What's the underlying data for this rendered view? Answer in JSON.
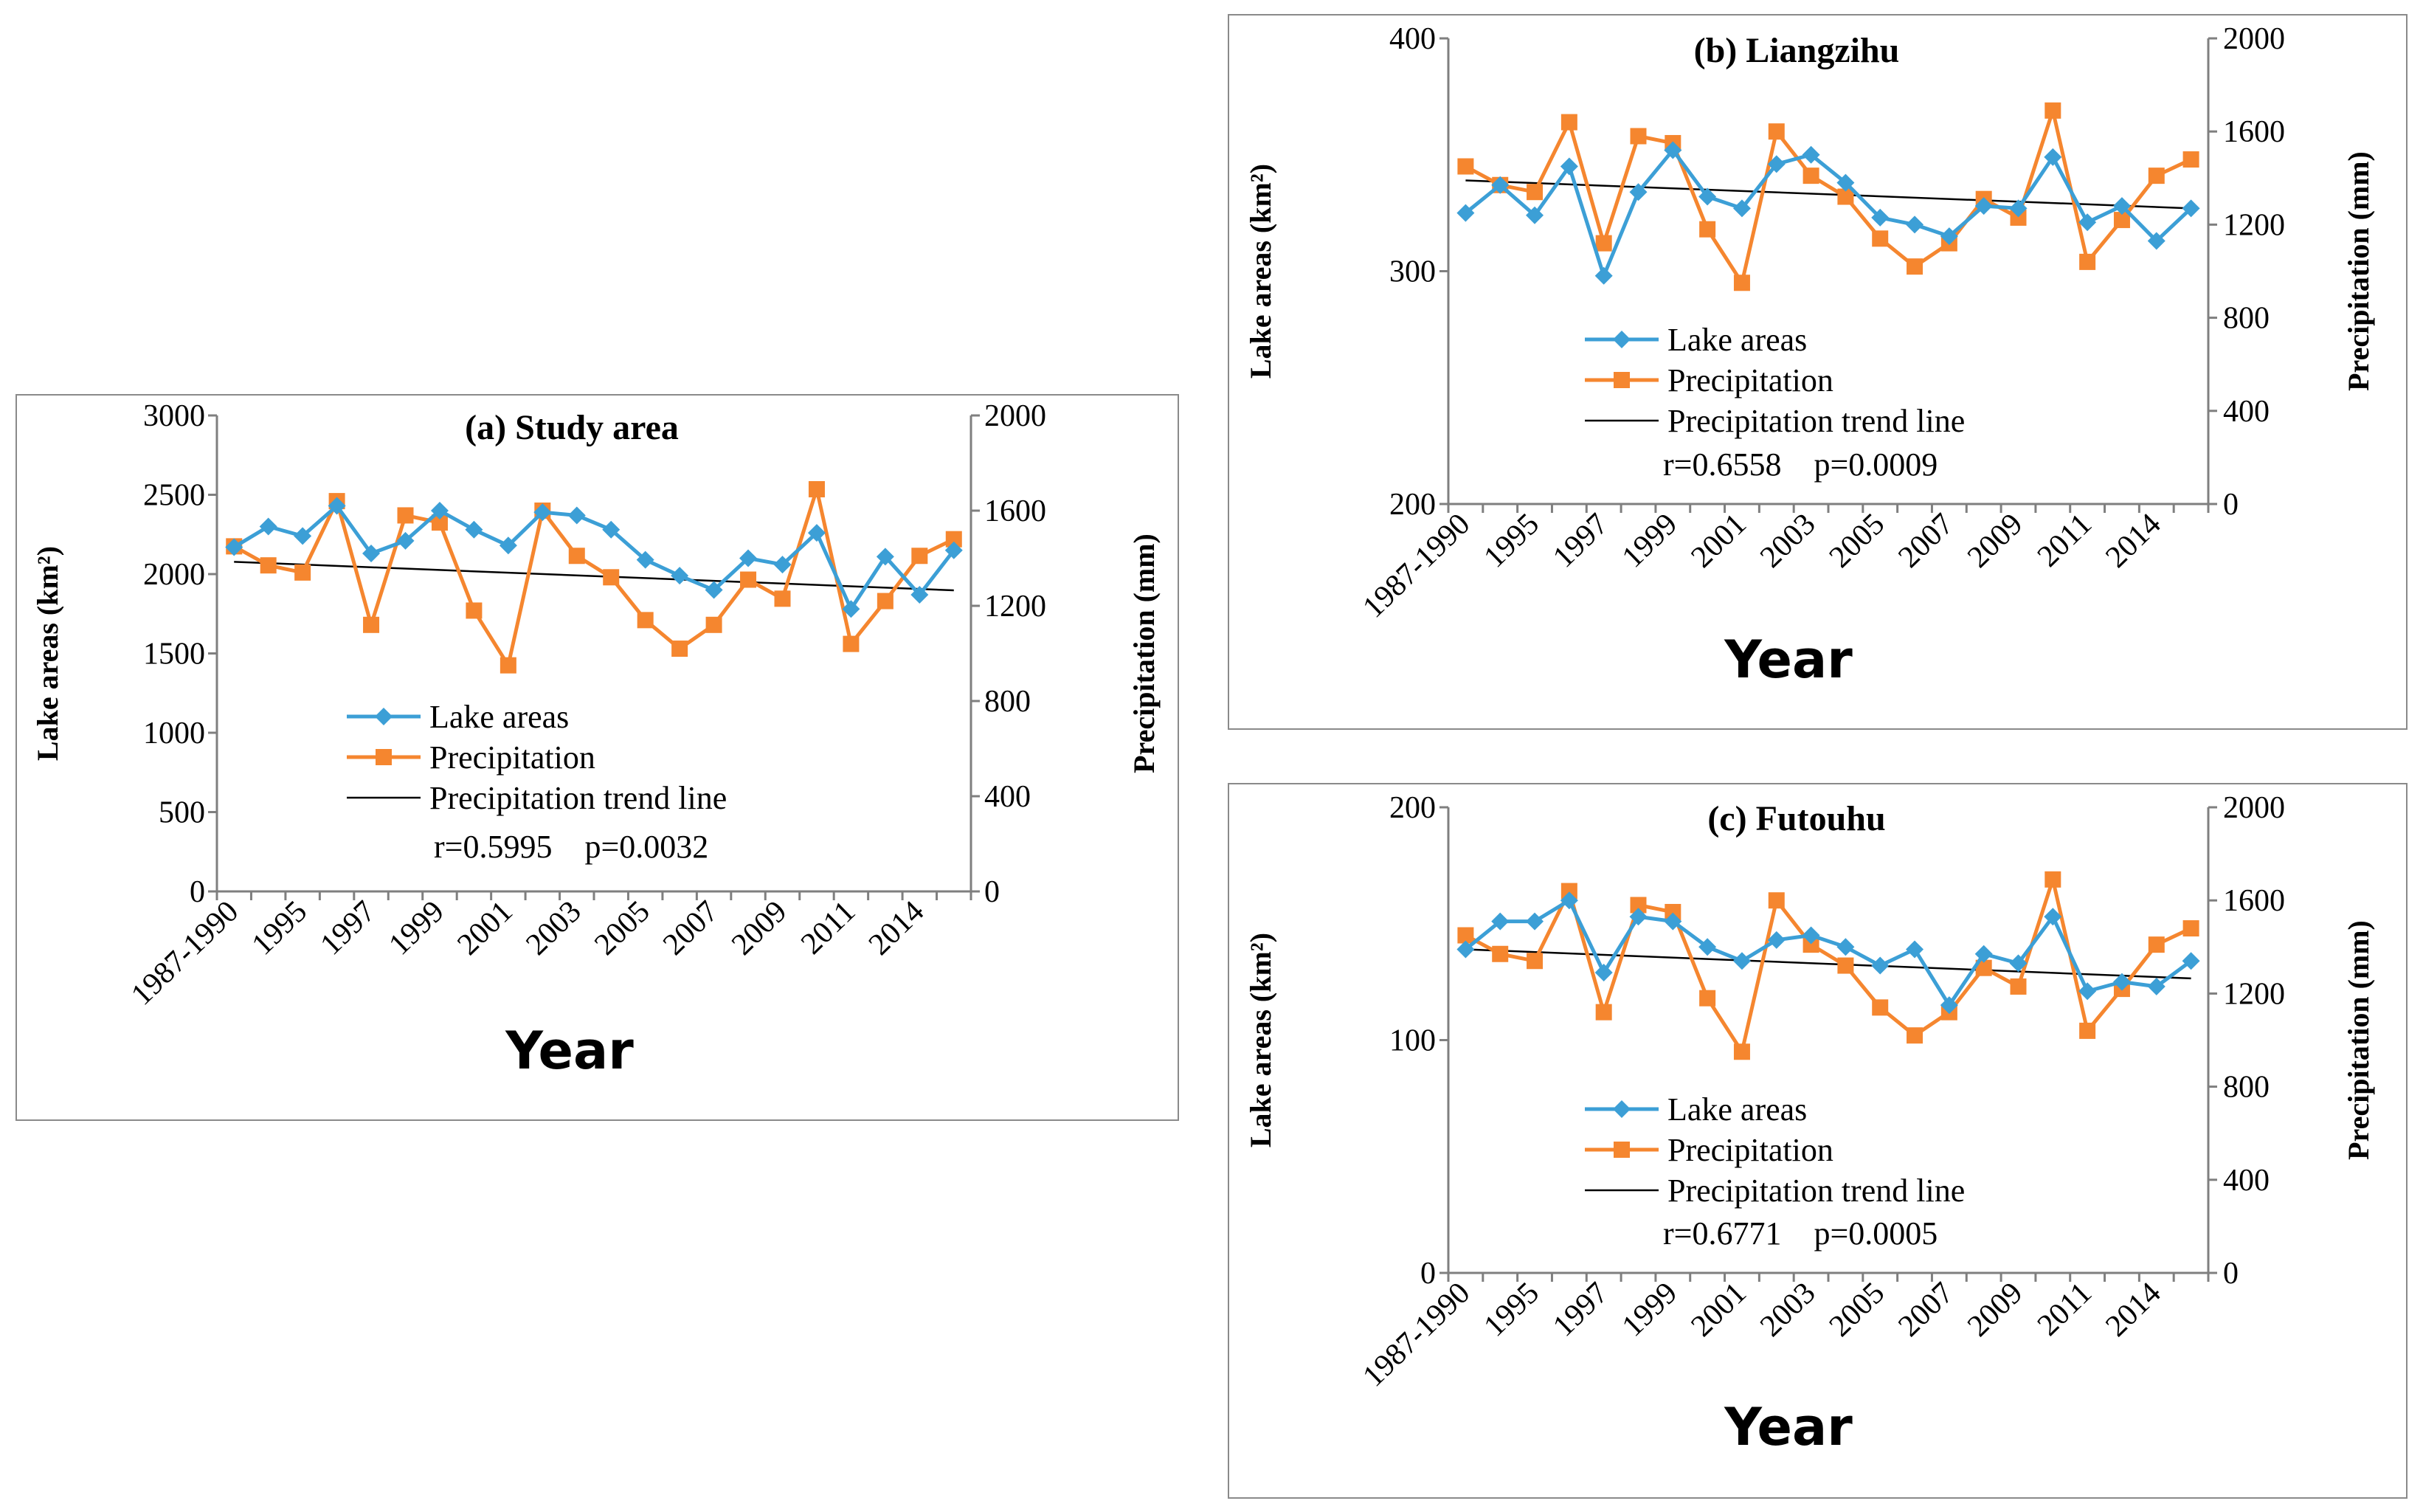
{
  "colors": {
    "lake": "#3c9fd6",
    "precip": "#f5862f",
    "trend": "#000000",
    "axis": "#7f7f7f",
    "frame": "#8a8a8a"
  },
  "chart_data": [
    {
      "type": "line",
      "title": "(a) Study area",
      "xlabel": "Year",
      "ylabel_left": "Lake areas (km²)",
      "ylabel_right": "Precipitation (mm)",
      "ylim_left": [
        0,
        3000
      ],
      "yticks_left": [
        "0",
        "500",
        "1000",
        "1500",
        "2000",
        "2500",
        "3000"
      ],
      "ylim_right": [
        0,
        2000
      ],
      "yticks_right": [
        "0",
        "400",
        "800",
        "1200",
        "1600",
        "2000"
      ],
      "x_labels": [
        "1987-1990",
        "1995",
        "1997",
        "1999",
        "2001",
        "2003",
        "2005",
        "2007",
        "2009",
        "2011",
        "2014"
      ],
      "legend": [
        "Lake areas",
        "Precipitation",
        "Precipitation trend line"
      ],
      "stats": "r=0.5995    p=0.0032",
      "series": [
        {
          "name": "Lake areas",
          "axis": "left",
          "values": [
            2170,
            2300,
            2240,
            2430,
            2130,
            2210,
            2400,
            2280,
            2180,
            2390,
            2370,
            2280,
            2090,
            1990,
            1900,
            2100,
            2060,
            2260,
            1780,
            2110,
            1870,
            2150
          ]
        },
        {
          "name": "Precipitation",
          "axis": "right",
          "values": [
            1450,
            1370,
            1340,
            1640,
            1120,
            1580,
            1550,
            1180,
            950,
            1600,
            1410,
            1320,
            1140,
            1020,
            1120,
            1310,
            1230,
            1690,
            1040,
            1220,
            1410,
            1480
          ]
        },
        {
          "name": "Precipitation trend line",
          "axis": "right",
          "values": [
            1385,
            1265
          ]
        }
      ]
    },
    {
      "type": "line",
      "title": "(b) Liangzihu",
      "xlabel": "Year",
      "ylabel_left": "Lake areas (km²)",
      "ylabel_right": "Precipitation (mm)",
      "ylim_left": [
        200,
        400
      ],
      "yticks_left": [
        "200",
        "300",
        "400"
      ],
      "ylim_right": [
        0,
        2000
      ],
      "yticks_right": [
        "0",
        "400",
        "800",
        "1200",
        "1600",
        "2000"
      ],
      "x_labels": [
        "1987-1990",
        "1995",
        "1997",
        "1999",
        "2001",
        "2003",
        "2005",
        "2007",
        "2009",
        "2011",
        "2014"
      ],
      "legend": [
        "Lake areas",
        "Precipitation",
        "Precipitation trend line"
      ],
      "stats": "r=0.6558    p=0.0009",
      "series": [
        {
          "name": "Lake areas",
          "axis": "left",
          "values": [
            325,
            337,
            324,
            345,
            298,
            334,
            352,
            332,
            327,
            346,
            350,
            338,
            323,
            320,
            315,
            328,
            327,
            349,
            321,
            328,
            313,
            327
          ]
        },
        {
          "name": "Precipitation",
          "axis": "right",
          "values": [
            1450,
            1370,
            1340,
            1640,
            1120,
            1580,
            1550,
            1180,
            950,
            1600,
            1410,
            1320,
            1140,
            1020,
            1120,
            1310,
            1230,
            1690,
            1040,
            1220,
            1410,
            1480
          ]
        },
        {
          "name": "Precipitation trend line",
          "axis": "right",
          "values": [
            1390,
            1270
          ]
        }
      ]
    },
    {
      "type": "line",
      "title": "(c) Futouhu",
      "xlabel": "Year",
      "ylabel_left": "Lake areas (km²)",
      "ylabel_right": "Precipitation (mm)",
      "ylim_left": [
        0,
        200
      ],
      "yticks_left": [
        "0",
        "100",
        "200"
      ],
      "ylim_right": [
        0,
        2000
      ],
      "yticks_right": [
        "0",
        "400",
        "800",
        "1200",
        "1600",
        "2000"
      ],
      "x_labels": [
        "1987-1990",
        "1995",
        "1997",
        "1999",
        "2001",
        "2003",
        "2005",
        "2007",
        "2009",
        "2011",
        "2014"
      ],
      "legend": [
        "Lake areas",
        "Precipitation",
        "Precipitation trend line"
      ],
      "stats": "r=0.6771    p=0.0005",
      "series": [
        {
          "name": "Lake areas",
          "axis": "left",
          "values": [
            139,
            151,
            151,
            160,
            129,
            153,
            151,
            140,
            134,
            143,
            145,
            140,
            132,
            139,
            115,
            137,
            133,
            153,
            121,
            125,
            123,
            134
          ]
        },
        {
          "name": "Precipitation",
          "axis": "right",
          "values": [
            1450,
            1370,
            1340,
            1640,
            1120,
            1580,
            1550,
            1180,
            950,
            1600,
            1410,
            1320,
            1140,
            1020,
            1120,
            1310,
            1230,
            1690,
            1040,
            1220,
            1410,
            1480
          ]
        },
        {
          "name": "Precipitation trend line",
          "axis": "right",
          "values": [
            1390,
            1265
          ]
        }
      ]
    }
  ]
}
